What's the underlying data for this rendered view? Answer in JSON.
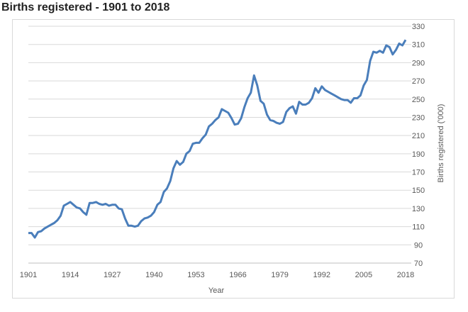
{
  "chart_data": {
    "type": "line",
    "title": "Births registered - 1901 to 2018",
    "xlabel": "Year",
    "ylabel": "Births registered ('000)",
    "xlim": [
      1901,
      2018
    ],
    "ylim": [
      70,
      330
    ],
    "x_ticks": [
      "1901",
      "1914",
      "1927",
      "1940",
      "1953",
      "1966",
      "1979",
      "1992",
      "2005",
      "2018"
    ],
    "y_ticks": [
      "70",
      "90",
      "110",
      "130",
      "150",
      "170",
      "190",
      "210",
      "230",
      "250",
      "270",
      "290",
      "310",
      "330"
    ],
    "y_axis_side": "right",
    "grid": true,
    "legend": "none",
    "color": "#4a7ebb",
    "x_start": 1901,
    "values": [
      103,
      103,
      98,
      104,
      105,
      108,
      110,
      112,
      114,
      117,
      122,
      133,
      135,
      137,
      134,
      131,
      130,
      126,
      123,
      136,
      136,
      137,
      135,
      134,
      135,
      133,
      134,
      134,
      130,
      129,
      119,
      111,
      111,
      110,
      111,
      116,
      119,
      120,
      122,
      126,
      134,
      137,
      148,
      152,
      160,
      174,
      182,
      178,
      181,
      190,
      193,
      201,
      202,
      202,
      207,
      211,
      220,
      223,
      227,
      230,
      239,
      237,
      235,
      229,
      222,
      223,
      229,
      241,
      251,
      257,
      276,
      265,
      248,
      245,
      233,
      227,
      226,
      224,
      223,
      225,
      236,
      240,
      242,
      234,
      247,
      244,
      244,
      246,
      251,
      262,
      257,
      264,
      260,
      258,
      256,
      254,
      252,
      250,
      249,
      249,
      246,
      251,
      251,
      254,
      265,
      271,
      292,
      302,
      301,
      303,
      301,
      309,
      307,
      299,
      304,
      311,
      309,
      315
    ]
  }
}
